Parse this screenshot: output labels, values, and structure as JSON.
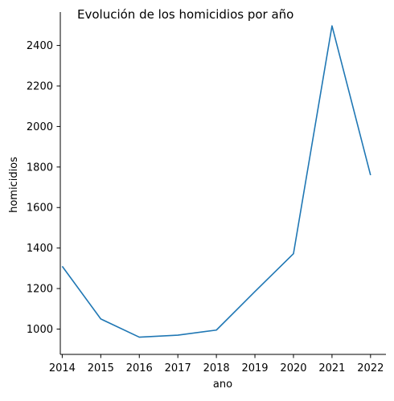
{
  "chart_data": {
    "type": "line",
    "title": "Evolución de los homicidios por año",
    "xlabel": "ano",
    "ylabel": "homicidios",
    "x": [
      2014,
      2015,
      2016,
      2017,
      2018,
      2019,
      2020,
      2021,
      2022
    ],
    "x_ticks": [
      "2014",
      "2015",
      "2016",
      "2017",
      "2018",
      "2019",
      "2020",
      "2021",
      "2022"
    ],
    "series": [
      {
        "values": [
          1310,
          1050,
          960,
          970,
          995,
          1185,
          1372,
          2497,
          1760
        ]
      }
    ],
    "y_ticks": [
      "1000",
      "1200",
      "1400",
      "1600",
      "1800",
      "2000",
      "2200",
      "2400"
    ],
    "xlim": [
      2013.95,
      2022.4
    ],
    "ylim": [
      875,
      2565
    ],
    "grid": false,
    "legend": "none",
    "line_color": "#1f77b4"
  }
}
